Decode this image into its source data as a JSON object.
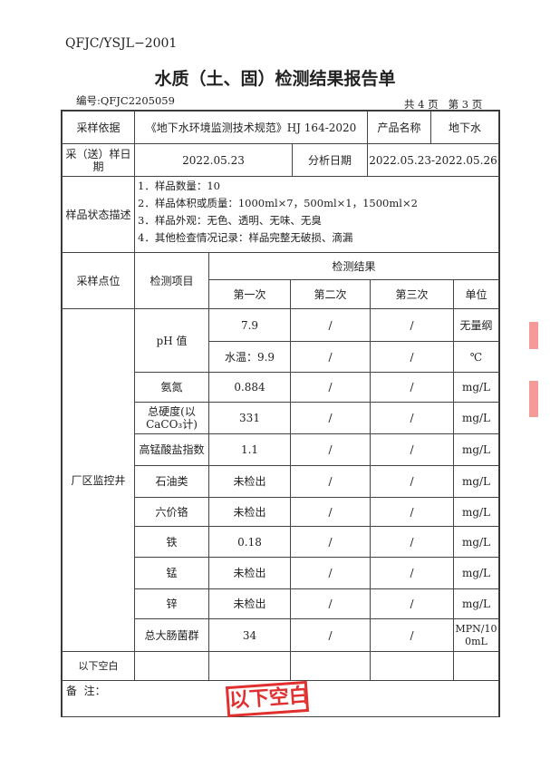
{
  "form_code": "QFJC/YSJL−2001",
  "title": "水质（土、固）检测结果报告单",
  "report_no": "编号:QFJC2205059",
  "page_info": "共 4 页   第 3 页",
  "basis": {
    "label": "采样依据",
    "value": "《地下水环境监测技术规范》HJ 164-2020",
    "product_label": "产品名称",
    "product": "地下水"
  },
  "dates": {
    "sample_label": "采（送）样日期",
    "sample": "2022.05.23",
    "analysis_label": "分析日期",
    "analysis": "2022.05.23-2022.05.26"
  },
  "status": {
    "label": "样品状态描述",
    "lines": [
      "1．样品数量：10",
      "2．样品体积或质量：1000ml×7，500ml×1，1500ml×2",
      "3．样品外观：无色、透明、无味、无臭",
      "4．其他检查情况记录：样品完整无破损、滴漏"
    ]
  },
  "header": {
    "point": "采样点位",
    "item": "检测项目",
    "result": "检测结果",
    "first": "第一次",
    "second": "第二次",
    "third": "第三次",
    "unit": "单位"
  },
  "point": "厂区监控井",
  "ph_label": "pH 值",
  "rows": [
    {
      "item": "",
      "v1": "7.9",
      "v2": "/",
      "v3": "/",
      "unit": "无量纲"
    },
    {
      "item": "",
      "v1": "水温：9.9",
      "v2": "/",
      "v3": "/",
      "unit": "℃"
    },
    {
      "item": "氨氮",
      "v1": "0.884",
      "v2": "/",
      "v3": "/",
      "unit": "mg/L"
    },
    {
      "item": "总硬度(以CaCO₃计)",
      "v1": "331",
      "v2": "/",
      "v3": "/",
      "unit": "mg/L"
    },
    {
      "item": "高锰酸盐指数",
      "v1": "1.1",
      "v2": "/",
      "v3": "/",
      "unit": "mg/L"
    },
    {
      "item": "石油类",
      "v1": "未检出",
      "v2": "/",
      "v3": "/",
      "unit": "mg/L"
    },
    {
      "item": "六价铬",
      "v1": "未检出",
      "v2": "/",
      "v3": "/",
      "unit": "mg/L"
    },
    {
      "item": "铁",
      "v1": "0.18",
      "v2": "/",
      "v3": "/",
      "unit": "mg/L"
    },
    {
      "item": "锰",
      "v1": "未检出",
      "v2": "/",
      "v3": "/",
      "unit": "mg/L"
    },
    {
      "item": "锌",
      "v1": "未检出",
      "v2": "/",
      "v3": "/",
      "unit": "mg/L"
    },
    {
      "item": "总大肠菌群",
      "v1": "34",
      "v2": "/",
      "v3": "/",
      "unit": "MPN/100mL"
    }
  ],
  "blank_note": "以下空白",
  "remark_label": "备  注：",
  "stamp_text": "以下空白"
}
